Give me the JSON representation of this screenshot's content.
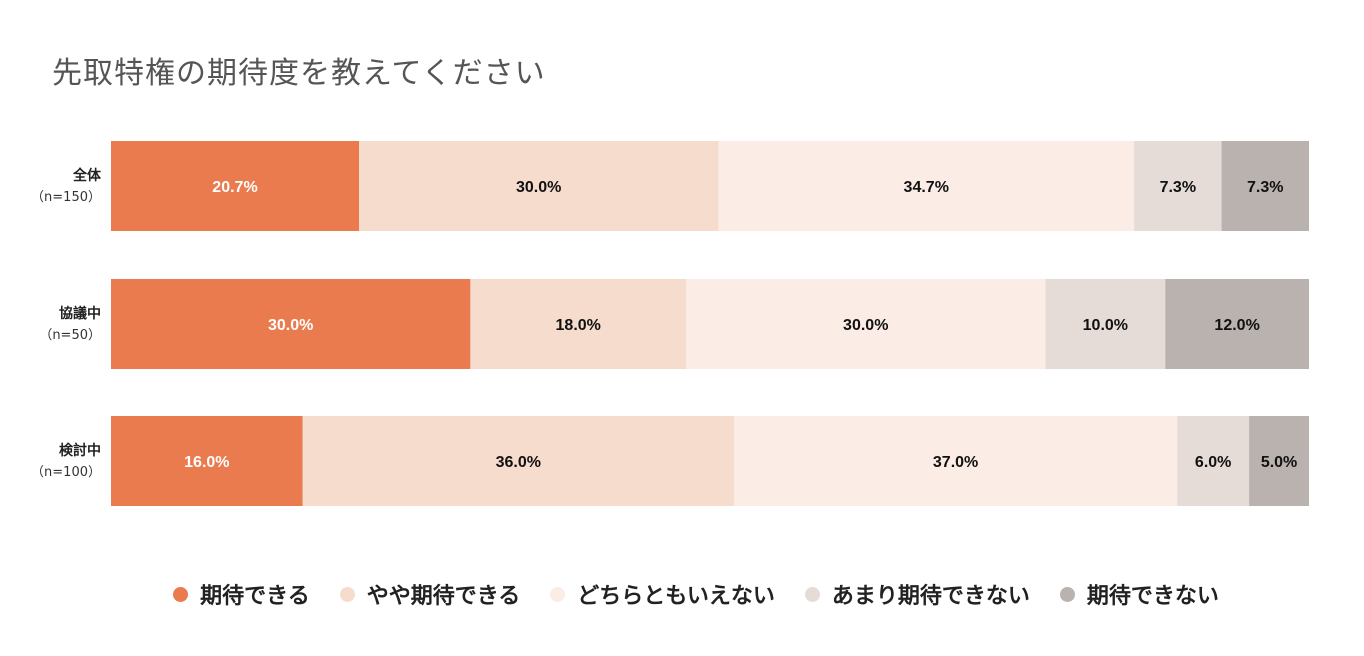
{
  "title": "先取特権の期待度を教えてください",
  "chart_data": {
    "type": "bar",
    "stacked": true,
    "orientation": "horizontal",
    "normalized_to": 100,
    "categories": [
      {
        "name": "全体",
        "n": "（n=150）"
      },
      {
        "name": "協議中",
        "n": "（n=50）"
      },
      {
        "name": "検討中",
        "n": "（n=100）"
      }
    ],
    "series": [
      {
        "name": "期待できる",
        "color": "#e97b4e",
        "label_color": "#ffffff",
        "values": [
          20.7,
          30.0,
          16.0
        ],
        "labels": [
          "20.7%",
          "30.0%",
          "16.0%"
        ]
      },
      {
        "name": "やや期待できる",
        "color": "#f6dccc",
        "label_color": "#111111",
        "values": [
          30.0,
          18.0,
          36.0
        ],
        "labels": [
          "30.0%",
          "18.0%",
          "36.0%"
        ]
      },
      {
        "name": "どちらともいえない",
        "color": "#fbece6",
        "label_color": "#111111",
        "values": [
          34.7,
          30.0,
          37.0
        ],
        "labels": [
          "34.7%",
          "30.0%",
          "37.0%"
        ]
      },
      {
        "name": "あまり期待できない",
        "color": "#e5dcd8",
        "label_color": "#111111",
        "values": [
          7.3,
          10.0,
          6.0
        ],
        "labels": [
          "7.3%",
          "10.0%",
          "6.0%"
        ]
      },
      {
        "name": "期待できない",
        "color": "#bab2ae",
        "label_color": "#111111",
        "values": [
          7.3,
          12.0,
          5.0
        ],
        "labels": [
          "7.3%",
          "12.0%",
          "5.0%"
        ]
      }
    ],
    "legend_position": "bottom",
    "grid": false
  }
}
